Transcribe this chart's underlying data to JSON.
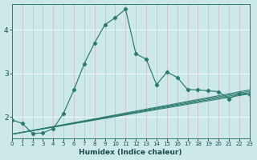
{
  "xlabel": "Humidex (Indice chaleur)",
  "bg_color": "#cce8e8",
  "line_color": "#2a7a6e",
  "xlim": [
    0,
    23
  ],
  "ylim": [
    1.5,
    4.6
  ],
  "xticks": [
    0,
    1,
    2,
    3,
    4,
    5,
    6,
    7,
    8,
    9,
    10,
    11,
    12,
    13,
    14,
    15,
    16,
    17,
    18,
    19,
    20,
    21,
    22,
    23
  ],
  "yticks": [
    2,
    3,
    4
  ],
  "main_x": [
    0,
    1,
    2,
    3,
    4,
    5,
    6,
    7,
    8,
    9,
    10,
    11,
    12,
    13,
    14,
    15,
    16,
    17,
    18,
    19,
    20,
    21,
    22,
    23
  ],
  "main_y": [
    1.93,
    1.85,
    1.62,
    1.63,
    1.73,
    2.08,
    2.62,
    3.22,
    3.7,
    4.12,
    4.28,
    4.48,
    3.45,
    3.33,
    2.74,
    3.03,
    2.91,
    2.63,
    2.62,
    2.6,
    2.58,
    2.41,
    2.53,
    2.52
  ],
  "straight_lines": [
    {
      "x": [
        0,
        23
      ],
      "y": [
        1.6,
        2.53
      ]
    },
    {
      "x": [
        0,
        23
      ],
      "y": [
        1.6,
        2.56
      ]
    },
    {
      "x": [
        0,
        23
      ],
      "y": [
        1.6,
        2.59
      ]
    },
    {
      "x": [
        0,
        23
      ],
      "y": [
        1.6,
        2.62
      ]
    }
  ]
}
